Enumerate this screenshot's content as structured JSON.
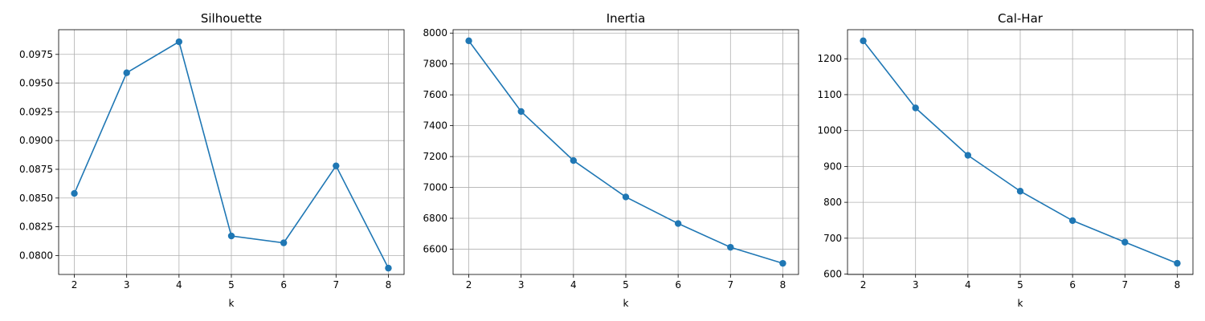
{
  "line_color": "#1f77b4",
  "grid_color": "#b0b0b0",
  "chart_data": [
    {
      "type": "line",
      "title": "Silhouette",
      "xlabel": "k",
      "ylabel": "",
      "grid": true,
      "x": [
        2,
        3,
        4,
        5,
        6,
        7,
        8
      ],
      "series": [
        {
          "values": [
            0.0854,
            0.0959,
            0.0986,
            0.0817,
            0.0811,
            0.0878,
            0.0789
          ]
        }
      ],
      "xlim": [
        1.7,
        8.3
      ],
      "ylim": [
        0.07835,
        0.09965
      ],
      "xticks": [
        2,
        3,
        4,
        5,
        6,
        7,
        8
      ],
      "xtick_labels": [
        "2",
        "3",
        "4",
        "5",
        "6",
        "7",
        "8"
      ],
      "yticks": [
        0.08,
        0.0825,
        0.085,
        0.0875,
        0.09,
        0.0925,
        0.095,
        0.0975
      ],
      "ytick_labels": [
        "0.0800",
        "0.0825",
        "0.0850",
        "0.0875",
        "0.0900",
        "0.0925",
        "0.0950",
        "0.0975"
      ]
    },
    {
      "type": "line",
      "title": "Inertia",
      "xlabel": "k",
      "ylabel": "",
      "grid": true,
      "x": [
        2,
        3,
        4,
        5,
        6,
        7,
        8
      ],
      "series": [
        {
          "values": [
            7950,
            7492,
            7174,
            6938,
            6766,
            6612,
            6508
          ]
        }
      ],
      "xlim": [
        1.7,
        8.3
      ],
      "ylim": [
        6436,
        8022
      ],
      "xticks": [
        2,
        3,
        4,
        5,
        6,
        7,
        8
      ],
      "xtick_labels": [
        "2",
        "3",
        "4",
        "5",
        "6",
        "7",
        "8"
      ],
      "yticks": [
        6600,
        6800,
        7000,
        7200,
        7400,
        7600,
        7800,
        8000
      ],
      "ytick_labels": [
        "6600",
        "6800",
        "7000",
        "7200",
        "7400",
        "7600",
        "7800",
        "8000"
      ]
    },
    {
      "type": "line",
      "title": "Cal-Har",
      "xlabel": "k",
      "ylabel": "",
      "grid": true,
      "x": [
        2,
        3,
        4,
        5,
        6,
        7,
        8
      ],
      "series": [
        {
          "values": [
            1250,
            1063,
            931,
            831,
            749,
            689,
            630
          ]
        }
      ],
      "xlim": [
        1.7,
        8.3
      ],
      "ylim": [
        599,
        1281
      ],
      "xticks": [
        2,
        3,
        4,
        5,
        6,
        7,
        8
      ],
      "xtick_labels": [
        "2",
        "3",
        "4",
        "5",
        "6",
        "7",
        "8"
      ],
      "yticks": [
        600,
        700,
        800,
        900,
        1000,
        1100,
        1200
      ],
      "ytick_labels": [
        "600",
        "700",
        "800",
        "900",
        "1000",
        "1100",
        "1200"
      ]
    }
  ]
}
